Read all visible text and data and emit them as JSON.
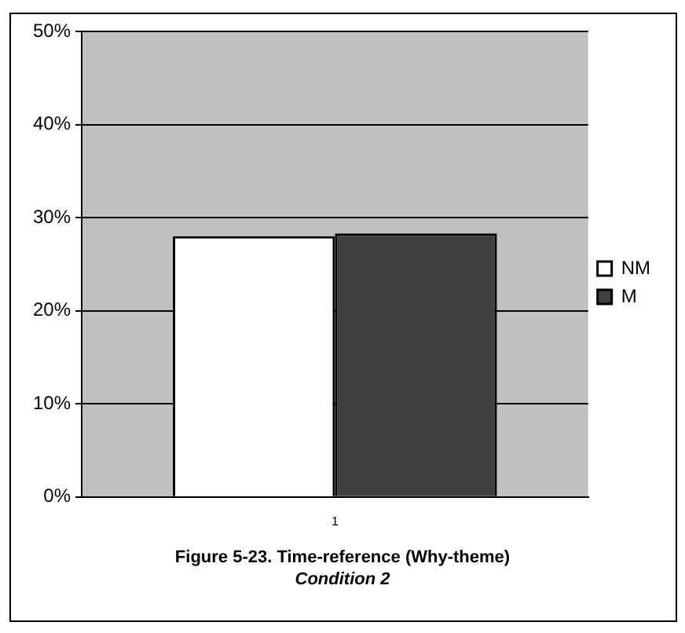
{
  "chart_data": {
    "type": "bar",
    "title": "Figure 5-23. Time-reference (Why-theme)",
    "subtitle": "Condition 2",
    "categories": [
      "1"
    ],
    "series": [
      {
        "name": "NM",
        "color": "#ffffff",
        "values": [
          28.0
        ]
      },
      {
        "name": "M",
        "color": "#404040",
        "values": [
          28.3
        ]
      }
    ],
    "ylim": [
      0,
      50
    ],
    "yticks": [
      {
        "value": 0,
        "label": "0%"
      },
      {
        "value": 10,
        "label": "10%"
      },
      {
        "value": 20,
        "label": "20%"
      },
      {
        "value": 30,
        "label": "30%"
      },
      {
        "value": 40,
        "label": "40%"
      },
      {
        "value": 50,
        "label": "50%"
      }
    ],
    "grid": "y",
    "legend": "right"
  }
}
